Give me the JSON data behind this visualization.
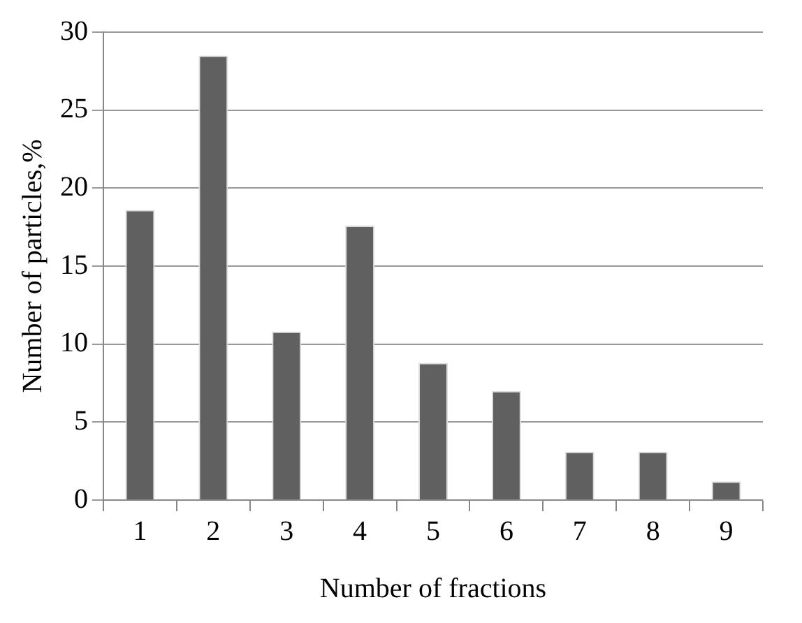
{
  "chart_data": {
    "type": "bar",
    "xlabel": "Number of fractions",
    "ylabel": "Number of particles,%",
    "categories": [
      "1",
      "2",
      "3",
      "4",
      "5",
      "6",
      "7",
      "8",
      "9"
    ],
    "values": [
      18.6,
      28.5,
      10.8,
      17.6,
      8.8,
      7,
      3.1,
      3.1,
      1.2
    ],
    "color": "#606060",
    "ylim": [
      0,
      30
    ],
    "yticks": [
      0,
      5,
      10,
      15,
      20,
      25,
      30
    ],
    "grid": "y",
    "legend": false
  }
}
